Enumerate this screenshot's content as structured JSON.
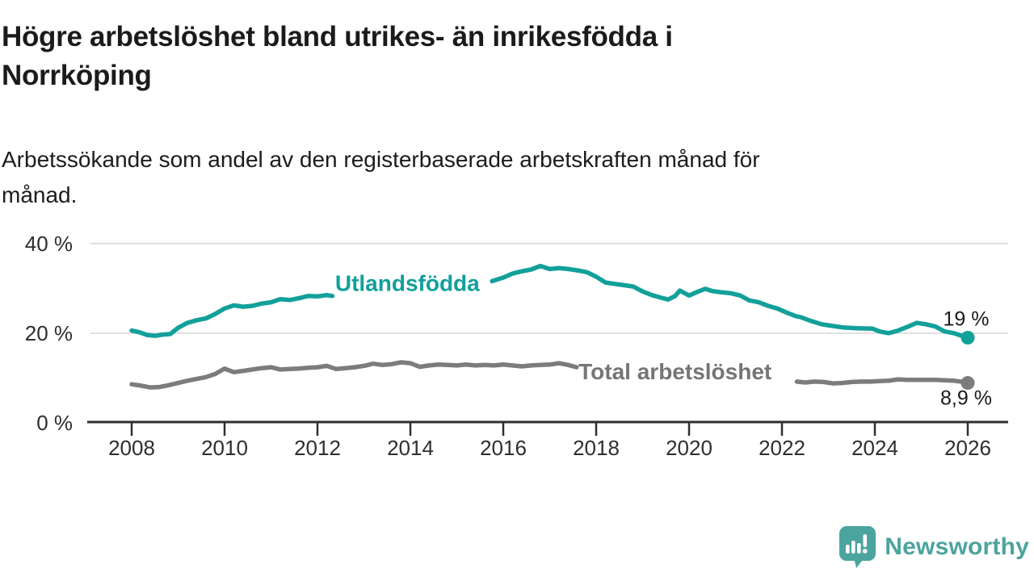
{
  "header": {
    "title_lines": [
      "Högre arbetslöshet bland utrikes- än inrikesfödda i",
      "Norrköping"
    ],
    "subtitle_lines": [
      "Arbetssökande som andel av den registerbaserade arbetskraften månad för",
      "månad."
    ]
  },
  "logo": {
    "text": "Newsworthy",
    "icon": "speech-bubble-bar-chart-icon",
    "color": "#4ba49e"
  },
  "colors": {
    "foreign_born_line": "#12a09a",
    "total_line": "#7c7c7c",
    "grid": "#d9d9d9",
    "axis": "#2f2f2f",
    "text": "#1b1b1b"
  },
  "chart_data": {
    "type": "line",
    "title": "Högre arbetslöshet bland utrikes- än inrikesfödda i Norrköping",
    "subtitle": "Arbetssökande som andel av den registerbaserade arbetskraften månad för månad.",
    "xlabel": "",
    "ylabel": "",
    "grid": "horizontal",
    "legend_position": "inline-line-labels",
    "xlim": [
      2007.05,
      2026.9
    ],
    "ylim": [
      0,
      40
    ],
    "x_ticks": [
      2008,
      2010,
      2012,
      2014,
      2016,
      2018,
      2020,
      2022,
      2024,
      2026
    ],
    "y_ticks": [
      {
        "value": 40,
        "label": "40 %"
      },
      {
        "value": 20,
        "label": "20 %"
      },
      {
        "value": 0,
        "label": "0 %"
      }
    ],
    "series": [
      {
        "name": "Utlandsfödda",
        "color": "#12a09a",
        "end_value": 19.0,
        "end_value_label": "19 %",
        "end_label_position": "above",
        "label_anchor": {
          "x": 2012.38,
          "y": 31.2
        },
        "segments": [
          [
            [
              2008.0,
              20.6
            ],
            [
              2008.17,
              20.2
            ],
            [
              2008.33,
              19.6
            ],
            [
              2008.5,
              19.4
            ],
            [
              2008.67,
              19.7
            ],
            [
              2008.83,
              19.8
            ],
            [
              2009.0,
              21.2
            ],
            [
              2009.2,
              22.3
            ],
            [
              2009.4,
              22.9
            ],
            [
              2009.6,
              23.3
            ],
            [
              2009.8,
              24.3
            ],
            [
              2010.0,
              25.5
            ],
            [
              2010.2,
              26.2
            ],
            [
              2010.4,
              25.9
            ],
            [
              2010.6,
              26.1
            ],
            [
              2010.8,
              26.6
            ],
            [
              2011.0,
              26.9
            ],
            [
              2011.2,
              27.6
            ],
            [
              2011.4,
              27.4
            ],
            [
              2011.6,
              27.8
            ],
            [
              2011.8,
              28.3
            ],
            [
              2012.0,
              28.2
            ],
            [
              2012.2,
              28.5
            ],
            [
              2012.32,
              28.3
            ]
          ],
          [
            [
              2015.76,
              31.6
            ],
            [
              2016.0,
              32.4
            ],
            [
              2016.2,
              33.3
            ],
            [
              2016.4,
              33.8
            ],
            [
              2016.6,
              34.2
            ],
            [
              2016.8,
              35.0
            ],
            [
              2017.0,
              34.3
            ],
            [
              2017.2,
              34.5
            ],
            [
              2017.4,
              34.3
            ],
            [
              2017.6,
              34.0
            ],
            [
              2017.8,
              33.6
            ],
            [
              2018.0,
              32.6
            ],
            [
              2018.2,
              31.3
            ],
            [
              2018.4,
              31.0
            ],
            [
              2018.6,
              30.7
            ],
            [
              2018.8,
              30.4
            ],
            [
              2019.0,
              29.3
            ],
            [
              2019.2,
              28.5
            ],
            [
              2019.4,
              27.9
            ],
            [
              2019.55,
              27.5
            ],
            [
              2019.7,
              28.3
            ],
            [
              2019.8,
              29.5
            ],
            [
              2020.0,
              28.4
            ],
            [
              2020.2,
              29.3
            ],
            [
              2020.35,
              29.9
            ],
            [
              2020.5,
              29.4
            ],
            [
              2020.7,
              29.1
            ],
            [
              2020.9,
              28.9
            ],
            [
              2021.1,
              28.4
            ],
            [
              2021.3,
              27.3
            ],
            [
              2021.5,
              26.9
            ],
            [
              2021.7,
              26.1
            ],
            [
              2021.9,
              25.5
            ],
            [
              2022.1,
              24.6
            ],
            [
              2022.3,
              23.8
            ],
            [
              2022.4,
              23.6
            ],
            [
              2022.6,
              22.8
            ],
            [
              2022.85,
              22.0
            ],
            [
              2023.1,
              21.6
            ],
            [
              2023.3,
              21.3
            ],
            [
              2023.6,
              21.1
            ],
            [
              2023.95,
              21.0
            ],
            [
              2024.1,
              20.4
            ],
            [
              2024.3,
              20.0
            ],
            [
              2024.5,
              20.6
            ],
            [
              2024.7,
              21.4
            ],
            [
              2024.9,
              22.3
            ],
            [
              2025.1,
              22.0
            ],
            [
              2025.3,
              21.5
            ],
            [
              2025.5,
              20.4
            ],
            [
              2025.7,
              20.0
            ],
            [
              2025.85,
              19.5
            ],
            [
              2026.0,
              19.0
            ]
          ]
        ]
      },
      {
        "name": "Total arbetslöshet",
        "color": "#7c7c7c",
        "end_value": 8.9,
        "end_value_label": "8,9 %",
        "end_label_position": "below",
        "label_anchor": {
          "x": 2017.62,
          "y": 11.5
        },
        "segments": [
          [
            [
              2008.0,
              8.6
            ],
            [
              2008.2,
              8.3
            ],
            [
              2008.4,
              7.9
            ],
            [
              2008.6,
              8.0
            ],
            [
              2008.8,
              8.4
            ],
            [
              2009.0,
              8.9
            ],
            [
              2009.2,
              9.4
            ],
            [
              2009.4,
              9.8
            ],
            [
              2009.6,
              10.2
            ],
            [
              2009.8,
              10.9
            ],
            [
              2010.0,
              12.1
            ],
            [
              2010.2,
              11.3
            ],
            [
              2010.4,
              11.6
            ],
            [
              2010.6,
              11.9
            ],
            [
              2010.8,
              12.2
            ],
            [
              2011.0,
              12.4
            ],
            [
              2011.2,
              11.9
            ],
            [
              2011.4,
              12.0
            ],
            [
              2011.6,
              12.1
            ],
            [
              2011.8,
              12.3
            ],
            [
              2012.0,
              12.4
            ],
            [
              2012.2,
              12.7
            ],
            [
              2012.4,
              12.0
            ],
            [
              2012.6,
              12.2
            ],
            [
              2012.8,
              12.4
            ],
            [
              2013.0,
              12.7
            ],
            [
              2013.2,
              13.2
            ],
            [
              2013.4,
              12.9
            ],
            [
              2013.6,
              13.1
            ],
            [
              2013.8,
              13.5
            ],
            [
              2014.0,
              13.3
            ],
            [
              2014.2,
              12.5
            ],
            [
              2014.4,
              12.8
            ],
            [
              2014.6,
              13.0
            ],
            [
              2014.8,
              12.9
            ],
            [
              2015.0,
              12.8
            ],
            [
              2015.2,
              13.0
            ],
            [
              2015.4,
              12.8
            ],
            [
              2015.6,
              12.9
            ],
            [
              2015.8,
              12.8
            ],
            [
              2016.0,
              13.0
            ],
            [
              2016.2,
              12.8
            ],
            [
              2016.4,
              12.6
            ],
            [
              2016.6,
              12.8
            ],
            [
              2016.8,
              12.9
            ],
            [
              2017.0,
              13.0
            ],
            [
              2017.2,
              13.3
            ],
            [
              2017.4,
              12.9
            ],
            [
              2017.58,
              12.4
            ]
          ],
          [
            [
              2022.32,
              9.2
            ],
            [
              2022.5,
              9.0
            ],
            [
              2022.7,
              9.2
            ],
            [
              2022.9,
              9.1
            ],
            [
              2023.1,
              8.8
            ],
            [
              2023.3,
              8.9
            ],
            [
              2023.5,
              9.1
            ],
            [
              2023.7,
              9.2
            ],
            [
              2023.9,
              9.2
            ],
            [
              2024.1,
              9.3
            ],
            [
              2024.3,
              9.4
            ],
            [
              2024.5,
              9.7
            ],
            [
              2024.7,
              9.6
            ],
            [
              2024.9,
              9.6
            ],
            [
              2025.1,
              9.6
            ],
            [
              2025.3,
              9.6
            ],
            [
              2025.5,
              9.5
            ],
            [
              2025.7,
              9.4
            ],
            [
              2025.85,
              9.2
            ],
            [
              2026.0,
              8.9
            ]
          ]
        ]
      }
    ]
  }
}
